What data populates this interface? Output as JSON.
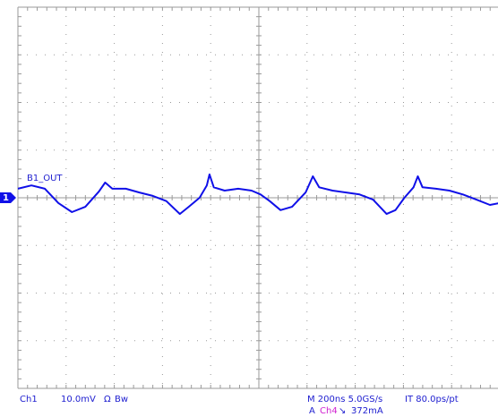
{
  "chart_data": {
    "type": "line",
    "color": "#1010e8",
    "xlim": [
      0,
      2000
    ],
    "ylim": [
      -40,
      40
    ],
    "x": [
      0,
      56,
      112,
      168,
      224,
      280,
      336,
      362,
      392,
      448,
      504,
      560,
      616,
      672,
      709,
      754,
      784,
      795,
      813,
      858,
      914,
      970,
      1007,
      1045,
      1090,
      1138,
      1194,
      1224,
      1250,
      1306,
      1362,
      1418,
      1474,
      1530,
      1567,
      1604,
      1642,
      1660,
      1679,
      1735,
      1791,
      1847,
      1903,
      1959,
      2000
    ],
    "values": [
      1.9,
      2.6,
      1.9,
      -1.1,
      -3.0,
      -1.9,
      1.3,
      3.2,
      1.9,
      1.9,
      1.1,
      0.4,
      -0.7,
      -3.4,
      -1.9,
      0,
      2.6,
      4.9,
      2.2,
      1.5,
      1.9,
      1.5,
      0.7,
      -0.7,
      -2.6,
      -1.9,
      1.1,
      4.5,
      2.2,
      1.5,
      1.1,
      0.7,
      -0.4,
      -3.4,
      -2.6,
      0,
      2.2,
      4.5,
      2.2,
      1.9,
      1.5,
      0.7,
      -0.4,
      -1.5,
      -1.1
    ],
    "annotations": [
      "B1_OUT",
      "1",
      "Ch1",
      "10.0mV",
      "Ω",
      "Bw",
      "M 200ns 5.0GS/s",
      "IT 80.0ps/pt",
      "A",
      "Ch4",
      "↘",
      "372mA"
    ]
  }
}
